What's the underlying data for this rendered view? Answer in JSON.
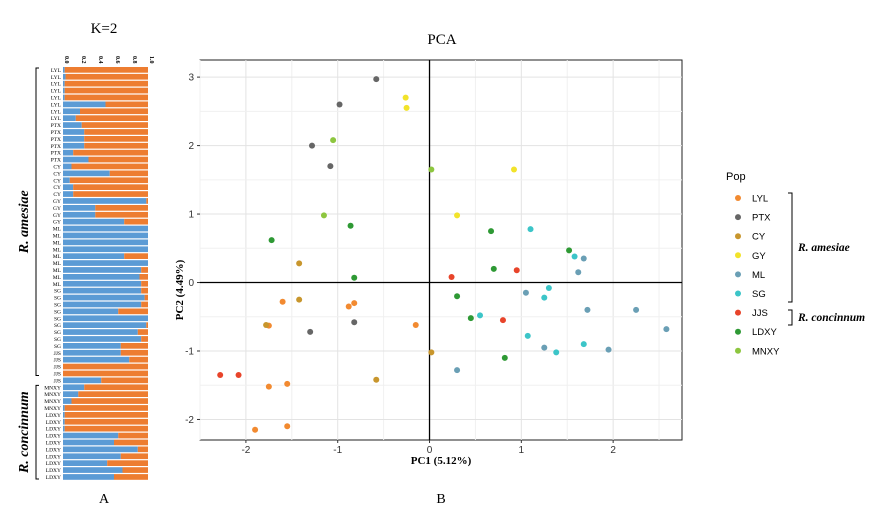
{
  "panel_a": {
    "title": "K=2",
    "caption": "A",
    "group_labels": [
      "R. amesiae",
      "R. concinnum"
    ]
  },
  "panel_b": {
    "caption": "B",
    "legend_title": "Pop",
    "group_labels": [
      "R. amesiae",
      "R. concinnum"
    ]
  },
  "chart_data": [
    {
      "type": "bar",
      "orientation": "horizontal-stacked",
      "title": "K=2",
      "xlim": [
        0,
        1
      ],
      "x_ticks": [
        "0.0",
        "0.2",
        "0.4",
        "0.6",
        "0.8",
        "1.0"
      ],
      "colors": {
        "cluster1": "#5b9bd5",
        "cluster2": "#ed7d31"
      },
      "categories": [
        "LYL",
        "LYL",
        "LYL",
        "LYL",
        "LYL",
        "LYL",
        "LYL",
        "LYL",
        "PTX",
        "PTX",
        "PTX",
        "PTX",
        "PTX",
        "PTX",
        "CY",
        "CY",
        "CY",
        "CY",
        "CY",
        "GY",
        "GY",
        "GY",
        "GY",
        "ML",
        "ML",
        "ML",
        "ML",
        "ML",
        "ML",
        "ML",
        "ML",
        "ML",
        "SG",
        "SG",
        "SG",
        "SG",
        "SG",
        "SG",
        "SG",
        "SG",
        "SG",
        "JJS",
        "JJS",
        "JJS",
        "JJS",
        "JJS",
        "MNXY",
        "MNXY",
        "MNXY",
        "MNXY",
        "LDXY",
        "LDXY",
        "LDXY",
        "LDXY",
        "LDXY",
        "LDXY",
        "LDXY",
        "LDXY",
        "LDXY",
        "LDXY"
      ],
      "values": [
        0.02,
        0.03,
        0.02,
        0.02,
        0.02,
        0.5,
        0.2,
        0.15,
        0.22,
        0.25,
        0.25,
        0.25,
        0.12,
        0.3,
        0.1,
        0.55,
        0.08,
        0.12,
        0.12,
        0.98,
        0.38,
        0.38,
        0.72,
        1.0,
        1.0,
        1.0,
        1.0,
        0.72,
        1.0,
        0.92,
        0.9,
        0.92,
        0.92,
        0.96,
        0.92,
        0.65,
        1.0,
        0.98,
        0.88,
        0.92,
        0.68,
        0.68,
        0.78,
        0.0,
        0.0,
        0.45,
        0.25,
        0.18,
        0.1,
        0.02,
        0.02,
        0.02,
        0.02,
        0.65,
        0.6,
        0.88,
        0.68,
        0.52,
        0.7,
        0.6
      ],
      "groups": [
        {
          "name": "R. amesiae",
          "start": 0,
          "end": 44
        },
        {
          "name": "R. concinnum",
          "start": 46,
          "end": 59
        }
      ]
    },
    {
      "type": "scatter",
      "title": "PCA",
      "xlabel": "PC1  (5.12%)",
      "ylabel": "PC2  (4.49%)",
      "xlim": [
        -2.5,
        2.75
      ],
      "ylim": [
        -2.3,
        3.25
      ],
      "x_ticks": [
        -2,
        -1,
        0,
        1,
        2
      ],
      "y_ticks": [
        -2,
        -1,
        0,
        1,
        2,
        3
      ],
      "grid": true,
      "legend_placement": "right",
      "series": [
        {
          "name": "LYL",
          "color": "#f28a30",
          "points": [
            [
              -1.75,
              -0.63
            ],
            [
              -1.6,
              -0.28
            ],
            [
              -0.88,
              -0.35
            ],
            [
              -0.82,
              -0.3
            ],
            [
              -0.15,
              -0.62
            ],
            [
              -1.75,
              -1.52
            ],
            [
              -1.55,
              -1.48
            ],
            [
              -1.9,
              -2.15
            ],
            [
              -1.55,
              -2.1
            ]
          ]
        },
        {
          "name": "PTX",
          "color": "#666666",
          "points": [
            [
              -0.58,
              2.97
            ],
            [
              -0.98,
              2.6
            ],
            [
              -1.28,
              2.0
            ],
            [
              -1.08,
              1.7
            ],
            [
              -0.82,
              -0.58
            ],
            [
              -1.3,
              -0.72
            ]
          ]
        },
        {
          "name": "CY",
          "color": "#c8962d",
          "points": [
            [
              -1.42,
              0.28
            ],
            [
              -1.42,
              -0.25
            ],
            [
              -1.78,
              -0.62
            ],
            [
              0.02,
              -1.02
            ],
            [
              -0.58,
              -1.42
            ]
          ]
        },
        {
          "name": "GY",
          "color": "#f2e32a",
          "points": [
            [
              -0.26,
              2.7
            ],
            [
              -0.25,
              2.55
            ],
            [
              0.3,
              0.98
            ],
            [
              0.92,
              1.65
            ]
          ]
        },
        {
          "name": "ML",
          "color": "#6a9fb5",
          "points": [
            [
              1.68,
              0.35
            ],
            [
              1.62,
              0.15
            ],
            [
              1.05,
              -0.15
            ],
            [
              1.72,
              -0.4
            ],
            [
              2.25,
              -0.4
            ],
            [
              2.58,
              -0.68
            ],
            [
              1.25,
              -0.95
            ],
            [
              1.95,
              -0.98
            ],
            [
              0.3,
              -1.28
            ]
          ]
        },
        {
          "name": "SG",
          "color": "#3cc5c8",
          "points": [
            [
              1.1,
              0.78
            ],
            [
              1.58,
              0.38
            ],
            [
              1.3,
              -0.08
            ],
            [
              1.25,
              -0.22
            ],
            [
              0.55,
              -0.48
            ],
            [
              1.07,
              -0.78
            ],
            [
              1.38,
              -1.02
            ],
            [
              1.68,
              -0.9
            ]
          ]
        },
        {
          "name": "JJS",
          "color": "#e8442a",
          "points": [
            [
              0.24,
              0.08
            ],
            [
              0.95,
              0.18
            ],
            [
              0.8,
              -0.55
            ],
            [
              -2.28,
              -1.35
            ],
            [
              -2.08,
              -1.35
            ]
          ]
        },
        {
          "name": "LDXY",
          "color": "#2e9934",
          "points": [
            [
              -1.72,
              0.62
            ],
            [
              -0.86,
              0.83
            ],
            [
              0.67,
              0.75
            ],
            [
              0.7,
              0.2
            ],
            [
              1.52,
              0.47
            ],
            [
              -0.82,
              0.07
            ],
            [
              0.3,
              -0.2
            ],
            [
              0.45,
              -0.52
            ],
            [
              0.82,
              -1.1
            ]
          ]
        },
        {
          "name": "MNXY",
          "color": "#8dc63f",
          "points": [
            [
              -1.05,
              2.08
            ],
            [
              0.02,
              1.65
            ],
            [
              -1.15,
              0.98
            ]
          ]
        }
      ]
    }
  ]
}
